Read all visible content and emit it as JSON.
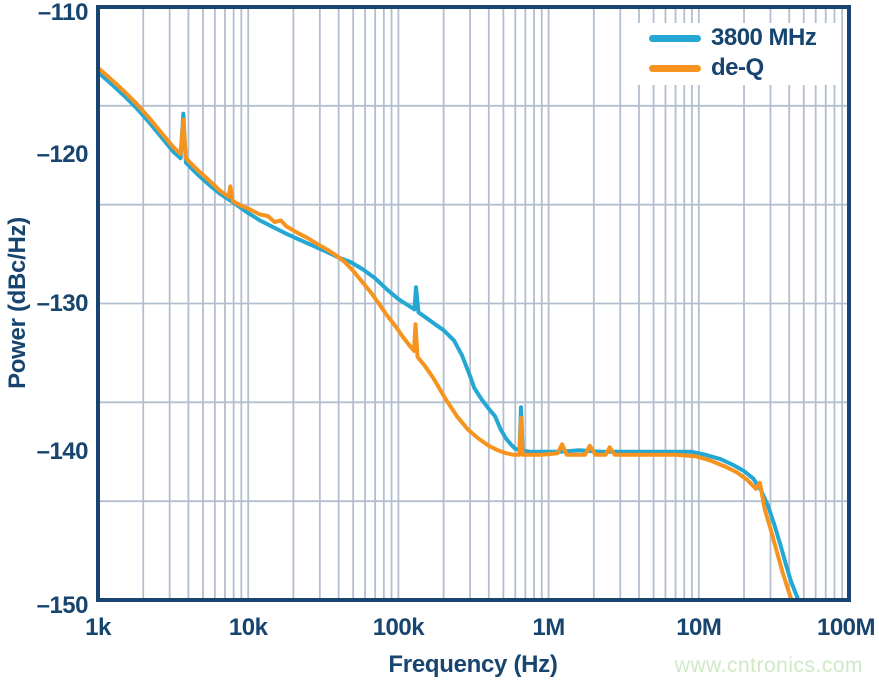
{
  "watermark": {
    "text": "www.cntronics.com",
    "color": "#cfe9c6"
  },
  "colors": {
    "axis_text": "#17456F",
    "plot_border": "#17456F",
    "grid": "#b3bfcf",
    "background": "#ffffff",
    "series_blue": "#24A7D2",
    "series_orange": "#F6941F"
  },
  "chart_data": {
    "type": "line",
    "title": "",
    "xlabel": "Frequency (Hz)",
    "ylabel": "Power (dBc/Hz)",
    "x_scale": "log",
    "y_scale": "linear",
    "x_range_hz": [
      1000,
      100000000
    ],
    "y_range_dbchz": [
      -150,
      -110
    ],
    "x_tick_labels": [
      "1k",
      "10k",
      "100k",
      "1M",
      "10M",
      "100M"
    ],
    "x_tick_values": [
      1000,
      10000,
      100000,
      1000000,
      10000000,
      100000000
    ],
    "y_tick_labels": [
      "–110",
      "–120",
      "–130",
      "–140",
      "–150"
    ],
    "y_tick_values": [
      -110,
      -120,
      -130,
      -140,
      -150
    ],
    "grid": {
      "horizontal_divisions": 6,
      "log_minor_verticals": true,
      "legend_position": "top-right"
    },
    "series": [
      {
        "name": "3800 MHz",
        "color": "#24A7D2",
        "points": [
          [
            1000,
            -114.4
          ],
          [
            1200,
            -115.1
          ],
          [
            1500,
            -116.0
          ],
          [
            1800,
            -116.8
          ],
          [
            2200,
            -117.8
          ],
          [
            2700,
            -118.9
          ],
          [
            3200,
            -119.8
          ],
          [
            3550,
            -120.2
          ],
          [
            3700,
            -117.2
          ],
          [
            3850,
            -120.5
          ],
          [
            4500,
            -121.2
          ],
          [
            5500,
            -122.0
          ],
          [
            6500,
            -122.6
          ],
          [
            8000,
            -123.2
          ],
          [
            10000,
            -123.9
          ],
          [
            12000,
            -124.4
          ],
          [
            15000,
            -124.9
          ],
          [
            18000,
            -125.3
          ],
          [
            22000,
            -125.7
          ],
          [
            27000,
            -126.1
          ],
          [
            33000,
            -126.5
          ],
          [
            40000,
            -126.9
          ],
          [
            48000,
            -127.2
          ],
          [
            58000,
            -127.7
          ],
          [
            70000,
            -128.3
          ],
          [
            85000,
            -129.1
          ],
          [
            100000,
            -129.7
          ],
          [
            115000,
            -130.1
          ],
          [
            128000,
            -130.4
          ],
          [
            131000,
            -128.9
          ],
          [
            136000,
            -130.6
          ],
          [
            150000,
            -130.9
          ],
          [
            170000,
            -131.3
          ],
          [
            200000,
            -131.8
          ],
          [
            235000,
            -132.5
          ],
          [
            265000,
            -133.5
          ],
          [
            300000,
            -134.9
          ],
          [
            320000,
            -135.7
          ],
          [
            360000,
            -136.5
          ],
          [
            400000,
            -137.1
          ],
          [
            440000,
            -137.6
          ],
          [
            480000,
            -138.5
          ],
          [
            520000,
            -139.1
          ],
          [
            560000,
            -139.5
          ],
          [
            600000,
            -139.8
          ],
          [
            640000,
            -139.9
          ],
          [
            655000,
            -137.0
          ],
          [
            672000,
            -139.9
          ],
          [
            750000,
            -140.0
          ],
          [
            900000,
            -140.0
          ],
          [
            1200000,
            -140.0
          ],
          [
            1600000,
            -139.9
          ],
          [
            2200000,
            -140.0
          ],
          [
            3000000,
            -140.0
          ],
          [
            4500000,
            -140.0
          ],
          [
            6500000,
            -140.0
          ],
          [
            9000000,
            -140.0
          ],
          [
            11000000,
            -140.2
          ],
          [
            14000000,
            -140.5
          ],
          [
            17000000,
            -140.9
          ],
          [
            20000000,
            -141.3
          ],
          [
            23000000,
            -141.8
          ],
          [
            26000000,
            -142.6
          ],
          [
            29000000,
            -143.7
          ],
          [
            32000000,
            -145.0
          ],
          [
            35000000,
            -146.3
          ],
          [
            38000000,
            -147.6
          ],
          [
            41000000,
            -148.7
          ],
          [
            44000000,
            -149.5
          ],
          [
            47000000,
            -150.2
          ]
        ]
      },
      {
        "name": "de-Q",
        "color": "#F6941F",
        "points": [
          [
            1000,
            -114.1
          ],
          [
            1200,
            -114.8
          ],
          [
            1500,
            -115.7
          ],
          [
            1800,
            -116.5
          ],
          [
            2200,
            -117.5
          ],
          [
            2700,
            -118.6
          ],
          [
            3200,
            -119.5
          ],
          [
            3550,
            -119.9
          ],
          [
            3700,
            -117.6
          ],
          [
            3850,
            -120.2
          ],
          [
            4500,
            -120.9
          ],
          [
            5500,
            -121.7
          ],
          [
            6500,
            -122.4
          ],
          [
            7400,
            -122.8
          ],
          [
            7600,
            -122.1
          ],
          [
            7900,
            -123.1
          ],
          [
            9000,
            -123.4
          ],
          [
            10000,
            -123.6
          ],
          [
            12000,
            -124.0
          ],
          [
            13500,
            -124.1
          ],
          [
            15000,
            -124.5
          ],
          [
            16500,
            -124.4
          ],
          [
            18000,
            -124.8
          ],
          [
            21000,
            -125.2
          ],
          [
            25000,
            -125.6
          ],
          [
            29000,
            -126.0
          ],
          [
            34000,
            -126.4
          ],
          [
            39000,
            -126.8
          ],
          [
            44000,
            -127.2
          ],
          [
            50000,
            -127.8
          ],
          [
            57000,
            -128.5
          ],
          [
            65000,
            -129.2
          ],
          [
            74000,
            -130.0
          ],
          [
            84000,
            -130.8
          ],
          [
            95000,
            -131.5
          ],
          [
            108000,
            -132.3
          ],
          [
            120000,
            -132.9
          ],
          [
            127000,
            -133.2
          ],
          [
            130000,
            -131.4
          ],
          [
            134000,
            -133.6
          ],
          [
            150000,
            -134.2
          ],
          [
            170000,
            -135.0
          ],
          [
            205000,
            -136.4
          ],
          [
            245000,
            -137.6
          ],
          [
            290000,
            -138.5
          ],
          [
            340000,
            -139.1
          ],
          [
            400000,
            -139.6
          ],
          [
            460000,
            -139.9
          ],
          [
            520000,
            -140.1
          ],
          [
            580000,
            -140.2
          ],
          [
            640000,
            -140.2
          ],
          [
            655000,
            -137.7
          ],
          [
            672000,
            -140.2
          ],
          [
            750000,
            -140.2
          ],
          [
            900000,
            -140.2
          ],
          [
            1150000,
            -140.1
          ],
          [
            1230000,
            -139.5
          ],
          [
            1320000,
            -140.2
          ],
          [
            1750000,
            -140.2
          ],
          [
            1880000,
            -139.6
          ],
          [
            2050000,
            -140.2
          ],
          [
            2400000,
            -140.2
          ],
          [
            2550000,
            -139.7
          ],
          [
            2750000,
            -140.2
          ],
          [
            3500000,
            -140.2
          ],
          [
            5000000,
            -140.2
          ],
          [
            7000000,
            -140.2
          ],
          [
            9500000,
            -140.3
          ],
          [
            12000000,
            -140.6
          ],
          [
            15000000,
            -141.0
          ],
          [
            18000000,
            -141.4
          ],
          [
            21000000,
            -141.9
          ],
          [
            24000000,
            -142.5
          ],
          [
            25500000,
            -142.1
          ],
          [
            27500000,
            -143.9
          ],
          [
            30000000,
            -145.2
          ],
          [
            33000000,
            -146.7
          ],
          [
            36000000,
            -148.1
          ],
          [
            39000000,
            -149.2
          ],
          [
            42000000,
            -150.2
          ]
        ]
      }
    ]
  }
}
